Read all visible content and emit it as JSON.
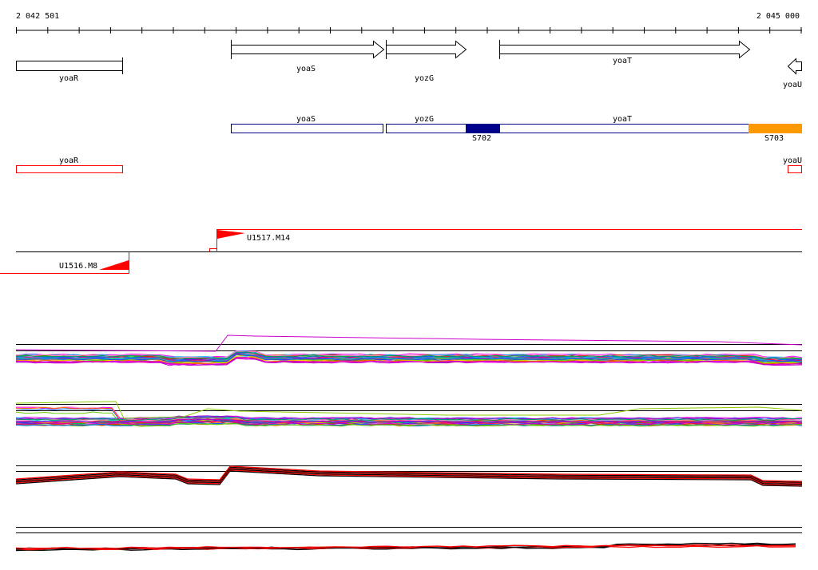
{
  "ruler": {
    "start_label": "2 042 501",
    "end_label": "2 045 000",
    "start_bp": 2042501,
    "end_bp": 2045000
  },
  "genes": [
    {
      "name": "yoaR",
      "strand": "none"
    },
    {
      "name": "yoaS",
      "strand": "+"
    },
    {
      "name": "yozG",
      "strand": "+"
    },
    {
      "name": "yoaT",
      "strand": "+"
    },
    {
      "name": "yoaU",
      "strand": "-"
    }
  ],
  "transcript_track": {
    "blue_labels": [
      "yoaS",
      "yozG",
      "yoaT"
    ],
    "red_labels": [
      "yoaR",
      "yoaU"
    ],
    "segments": [
      {
        "name": "S702",
        "color": "#00008b"
      },
      {
        "name": "S703",
        "color": "#ff9900"
      }
    ]
  },
  "transcription_units": [
    {
      "name": "U1517.M14",
      "color": "#ff0000"
    },
    {
      "name": "U1516.M8",
      "color": "#ff0000"
    }
  ],
  "colors": {
    "gene_outline": "#000000",
    "transcript_blue": "#00008b",
    "transcript_red": "#ff0000",
    "accent_orange": "#ff9900"
  }
}
